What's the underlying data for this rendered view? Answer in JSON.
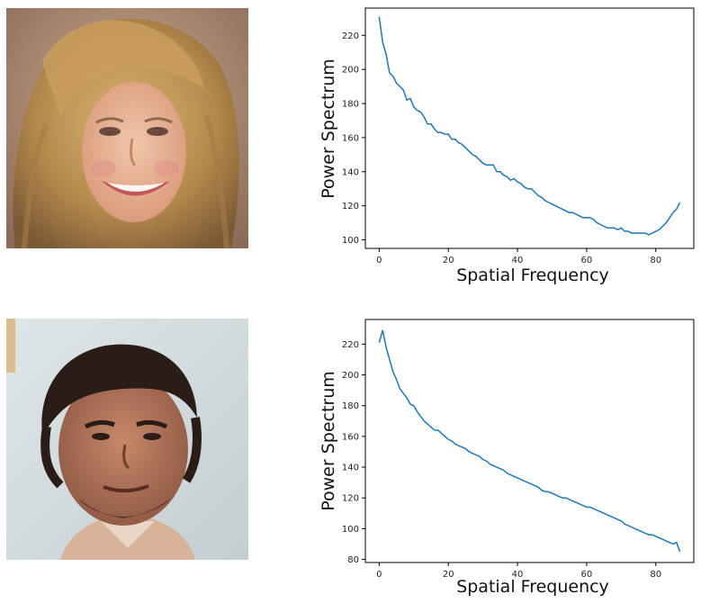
{
  "colors": {
    "line": "#1f77b4",
    "axis": "#000000"
  },
  "images": [
    {
      "name": "blonde-woman-face",
      "kind": "photo"
    },
    {
      "name": "dark-haired-man-face",
      "kind": "photo"
    }
  ],
  "chart_data": [
    {
      "type": "line",
      "xlabel": "Spatial Frequency",
      "ylabel": "Power Spectrum",
      "xlim": [
        -4,
        91
      ],
      "ylim": [
        95,
        236
      ],
      "xticks": [
        0,
        20,
        40,
        60,
        80
      ],
      "yticks": [
        100,
        120,
        140,
        160,
        180,
        200,
        220
      ],
      "grid": false,
      "series": [
        {
          "values": [
            231,
            216,
            209,
            198,
            196,
            192,
            190,
            188,
            182,
            183,
            178,
            176,
            175,
            172,
            168,
            168,
            165,
            163,
            163,
            162,
            162,
            159,
            159,
            157,
            156,
            154,
            152,
            150,
            149,
            147,
            145,
            144,
            144,
            144,
            140,
            140,
            138,
            137,
            135,
            136,
            134,
            133,
            131,
            130,
            130,
            128,
            126,
            125,
            123,
            122,
            121,
            120,
            119,
            118,
            117,
            116,
            116,
            115,
            114,
            113,
            113,
            113,
            112,
            110,
            109,
            108,
            107,
            107,
            107,
            106,
            107,
            105,
            105,
            104,
            104,
            104,
            104,
            104,
            103,
            104,
            105,
            106,
            108,
            110,
            113,
            116,
            118,
            122
          ]
        }
      ]
    },
    {
      "type": "line",
      "xlabel": "Spatial Frequency",
      "ylabel": "Power Spectrum",
      "xlim": [
        -4,
        91
      ],
      "ylim": [
        78,
        236
      ],
      "xticks": [
        0,
        20,
        40,
        60,
        80
      ],
      "yticks": [
        80,
        100,
        120,
        140,
        160,
        180,
        200,
        220
      ],
      "grid": false,
      "series": [
        {
          "values": [
            221,
            229,
            218,
            210,
            202,
            197,
            191,
            188,
            185,
            181,
            180,
            176,
            173,
            170,
            168,
            166,
            164,
            164,
            162,
            160,
            158,
            157,
            155,
            154,
            153,
            152,
            150,
            149,
            148,
            147,
            145,
            144,
            142,
            141,
            140,
            139,
            138,
            136,
            135,
            134,
            133,
            132,
            131,
            130,
            129,
            128,
            127,
            125,
            124,
            124,
            123,
            122,
            121,
            120,
            120,
            119,
            118,
            117,
            116,
            115,
            114,
            114,
            113,
            112,
            111,
            110,
            109,
            108,
            107,
            106,
            105,
            103,
            102,
            101,
            100,
            99,
            98,
            97,
            96,
            96,
            95,
            94,
            93,
            92,
            91,
            90,
            91,
            85
          ]
        }
      ]
    }
  ]
}
